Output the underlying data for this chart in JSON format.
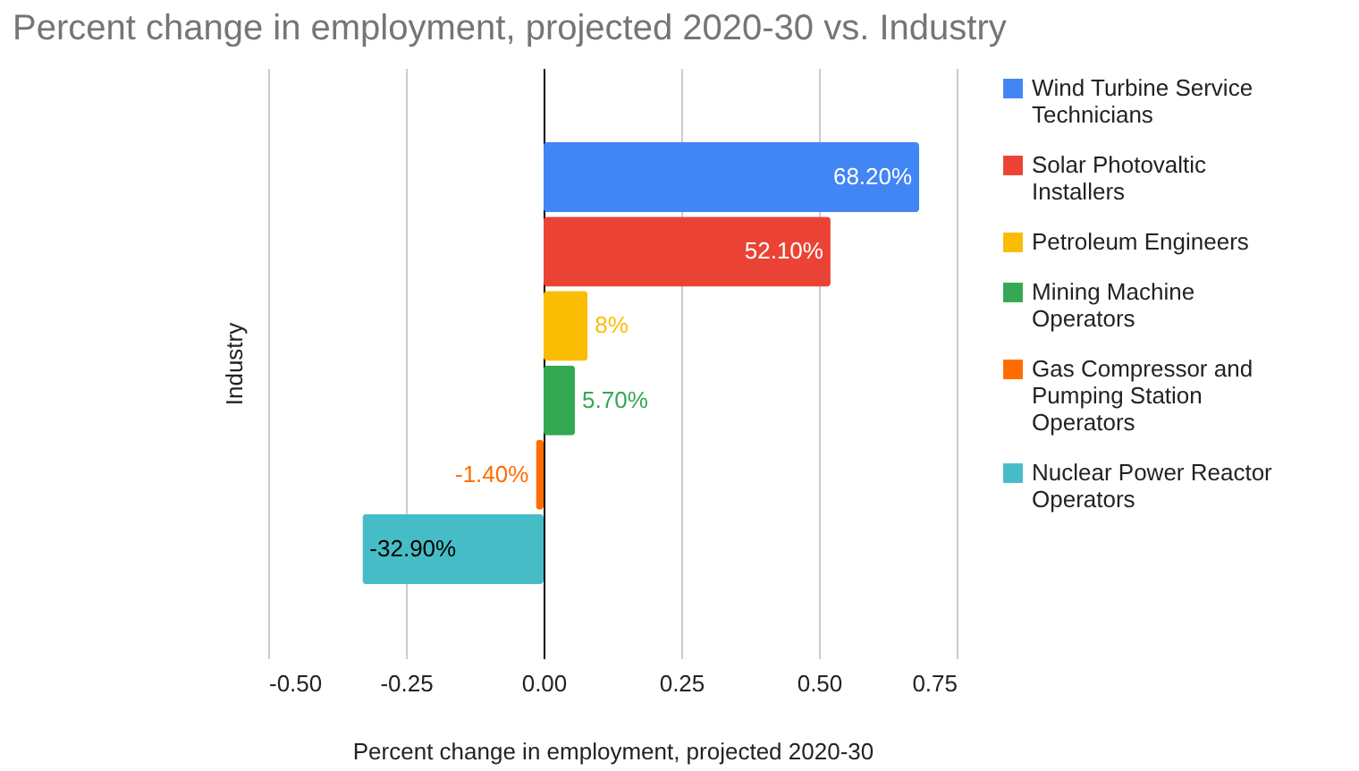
{
  "chart_data": {
    "type": "bar",
    "orientation": "horizontal",
    "title": "Percent change in employment, projected 2020-30 vs. Industry",
    "xlabel": "Percent change in employment, projected 2020-30",
    "ylabel": "Industry",
    "categories": [
      null
    ],
    "series": [
      {
        "name": "Wind Turbine Service Technicians",
        "color": "#4285f4",
        "values": [
          0.682
        ],
        "value_labels": [
          "68.20%"
        ]
      },
      {
        "name": "Solar Photovaltic Installers",
        "color": "#ea4335",
        "values": [
          0.521
        ],
        "value_labels": [
          "52.10%"
        ]
      },
      {
        "name": "Petroleum Engineers",
        "color": "#fbbc04",
        "values": [
          0.08
        ],
        "value_labels": [
          "8%"
        ]
      },
      {
        "name": "Mining Machine Operators",
        "color": "#34a853",
        "values": [
          0.057
        ],
        "value_labels": [
          "5.70%"
        ]
      },
      {
        "name": "Gas Compressor and Pumping Station Operators",
        "color": "#ff6d01",
        "values": [
          -0.014
        ],
        "value_labels": [
          "-1.40%"
        ]
      },
      {
        "name": "Nuclear Power Reactor Operators",
        "color": "#46bdc6",
        "values": [
          -0.329
        ],
        "value_labels": [
          "-32.90%"
        ]
      }
    ],
    "xlim": [
      -0.5,
      0.75
    ],
    "xticks": [
      {
        "value": -0.5,
        "label": "-0.50"
      },
      {
        "value": -0.25,
        "label": "-0.25"
      },
      {
        "value": 0,
        "label": "0.00"
      },
      {
        "value": 0.25,
        "label": "0.25"
      },
      {
        "value": 0.5,
        "label": "0.50"
      },
      {
        "value": 0.75,
        "label": "0.75"
      }
    ],
    "grid": "x",
    "legend": "right"
  }
}
